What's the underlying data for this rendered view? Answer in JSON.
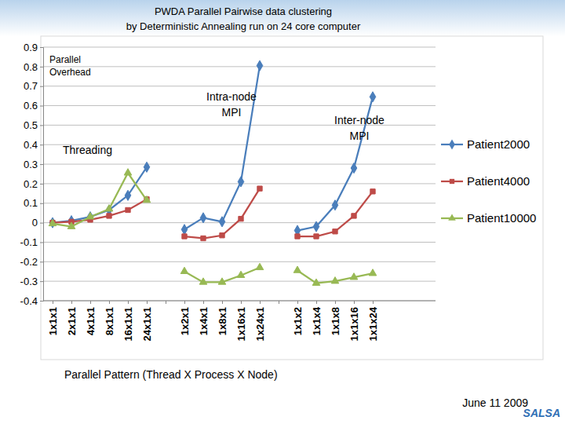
{
  "chart_data": {
    "type": "line",
    "title": "PWDA Parallel Pairwise data clustering",
    "subtitle": "by Deterministic Annealing run on 24 core computer",
    "x_label": "Parallel Pattern (Thread X Process X Node)",
    "categories": [
      "1x1x1",
      "2x1x1",
      "4x1x1",
      "8x1x1",
      "16x1x1",
      "24x1x1",
      null,
      "1x2x1",
      "1x4x1",
      "1x8x1",
      "1x16x1",
      "1x24x1",
      null,
      "1x1x2",
      "1x1x4",
      "1x1x8",
      "1x1x16",
      "1x1x24"
    ],
    "series": [
      {
        "name": "Patient2000",
        "color": "#4a7ebb",
        "marker": "diamond",
        "values": [
          0,
          0.01,
          0.03,
          0.065,
          0.14,
          0.285,
          null,
          -0.035,
          0.025,
          0.005,
          0.21,
          0.805,
          null,
          -0.04,
          -0.02,
          0.09,
          0.28,
          0.645
        ]
      },
      {
        "name": "Patient4000",
        "color": "#be4b48",
        "marker": "square",
        "values": [
          0,
          0.005,
          0.015,
          0.035,
          0.065,
          0.12,
          null,
          -0.07,
          -0.08,
          -0.065,
          0.02,
          0.175,
          null,
          -0.07,
          -0.07,
          -0.045,
          0.035,
          0.16
        ]
      },
      {
        "name": "Patient10000",
        "color": "#98b954",
        "marker": "triangle",
        "values": [
          -0.005,
          -0.02,
          0.03,
          0.07,
          0.255,
          0.115,
          null,
          -0.25,
          -0.305,
          -0.305,
          -0.27,
          -0.23,
          null,
          -0.245,
          -0.31,
          -0.3,
          -0.28,
          -0.26
        ]
      }
    ],
    "ylim": [
      -0.4,
      0.9
    ],
    "yticks": [
      -0.4,
      -0.3,
      -0.2,
      -0.1,
      0,
      0.1,
      0.2,
      0.3,
      0.4,
      0.5,
      0.6,
      0.7,
      0.8,
      0.9
    ],
    "grid": true,
    "legend": "right",
    "annotations": [
      [
        "Parallel",
        "Overhead"
      ],
      [
        "Intra-node",
        "MPI"
      ],
      [
        "Inter-node",
        "MPI"
      ],
      "Threading",
      "June 11 2009",
      "SALSA"
    ]
  }
}
